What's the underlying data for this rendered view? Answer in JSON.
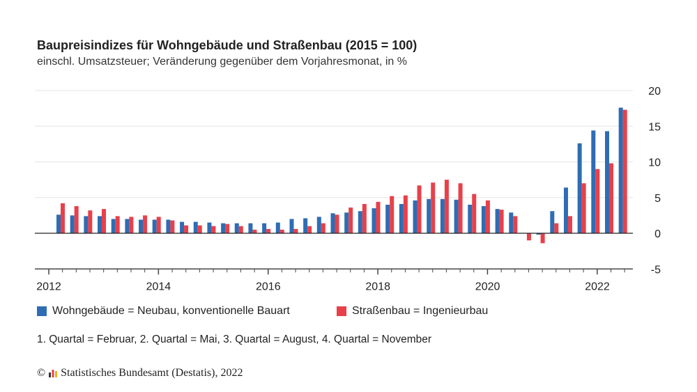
{
  "chart_data": {
    "type": "bar",
    "title": "Baupreisindizes für Wohngebäude und Straßenbau (2015 = 100)",
    "subtitle": "einschl. Umsatzsteuer; Veränderung gegenüber dem Vorjahresmonat, in %",
    "x": [
      "2012-Q1",
      "2012-Q2",
      "2012-Q3",
      "2012-Q4",
      "2013-Q1",
      "2013-Q2",
      "2013-Q3",
      "2013-Q4",
      "2014-Q1",
      "2014-Q2",
      "2014-Q3",
      "2014-Q4",
      "2015-Q1",
      "2015-Q2",
      "2015-Q3",
      "2015-Q4",
      "2016-Q1",
      "2016-Q2",
      "2016-Q3",
      "2016-Q4",
      "2017-Q1",
      "2017-Q2",
      "2017-Q3",
      "2017-Q4",
      "2018-Q1",
      "2018-Q2",
      "2018-Q3",
      "2018-Q4",
      "2019-Q1",
      "2019-Q2",
      "2019-Q3",
      "2019-Q4",
      "2020-Q1",
      "2020-Q2",
      "2020-Q3",
      "2020-Q4",
      "2021-Q1",
      "2021-Q2",
      "2021-Q3",
      "2021-Q4",
      "2022-Q1",
      "2022-Q2"
    ],
    "series": [
      {
        "name": "Wohngebäude = Neubau, konventionelle Bauart",
        "color": "#2e6db4",
        "values": [
          2.6,
          2.5,
          2.4,
          2.4,
          2.0,
          2.0,
          1.9,
          1.9,
          1.9,
          1.6,
          1.6,
          1.5,
          1.4,
          1.4,
          1.4,
          1.4,
          1.5,
          2.0,
          2.1,
          2.3,
          2.8,
          2.9,
          3.1,
          3.5,
          4.0,
          4.1,
          4.6,
          4.8,
          4.8,
          4.7,
          4.0,
          3.8,
          3.4,
          2.9,
          0.0,
          -0.2,
          3.1,
          6.4,
          12.6,
          14.4,
          14.3,
          17.6
        ]
      },
      {
        "name": "Straßenbau = Ingenieurbau",
        "color": "#e8404a",
        "values": [
          4.2,
          3.8,
          3.2,
          3.4,
          2.4,
          2.3,
          2.5,
          2.3,
          1.8,
          1.1,
          1.1,
          1.0,
          1.3,
          1.0,
          0.5,
          0.6,
          0.5,
          0.6,
          1.0,
          1.4,
          2.6,
          3.6,
          4.1,
          4.4,
          5.2,
          5.3,
          6.7,
          7.1,
          7.5,
          7.0,
          5.5,
          4.6,
          3.3,
          2.4,
          -1.0,
          -1.4,
          1.4,
          2.4,
          7.0,
          9.0,
          9.8,
          17.3
        ]
      }
    ],
    "x_tick_labels": [
      "2012",
      "2014",
      "2016",
      "2018",
      "2020",
      "2022"
    ],
    "y_tick_labels": [
      "20",
      "15",
      "10",
      "5",
      "0",
      "-5"
    ],
    "ylim": [
      -5,
      20
    ],
    "grid": true,
    "legend_position": "bottom",
    "footnote": "1. Quartal = Februar, 2. Quartal = Mai, 3. Quartal = August, 4. Quartal = November"
  },
  "source": "Statistisches Bundesamt (Destatis), 2022",
  "copyright": "©"
}
